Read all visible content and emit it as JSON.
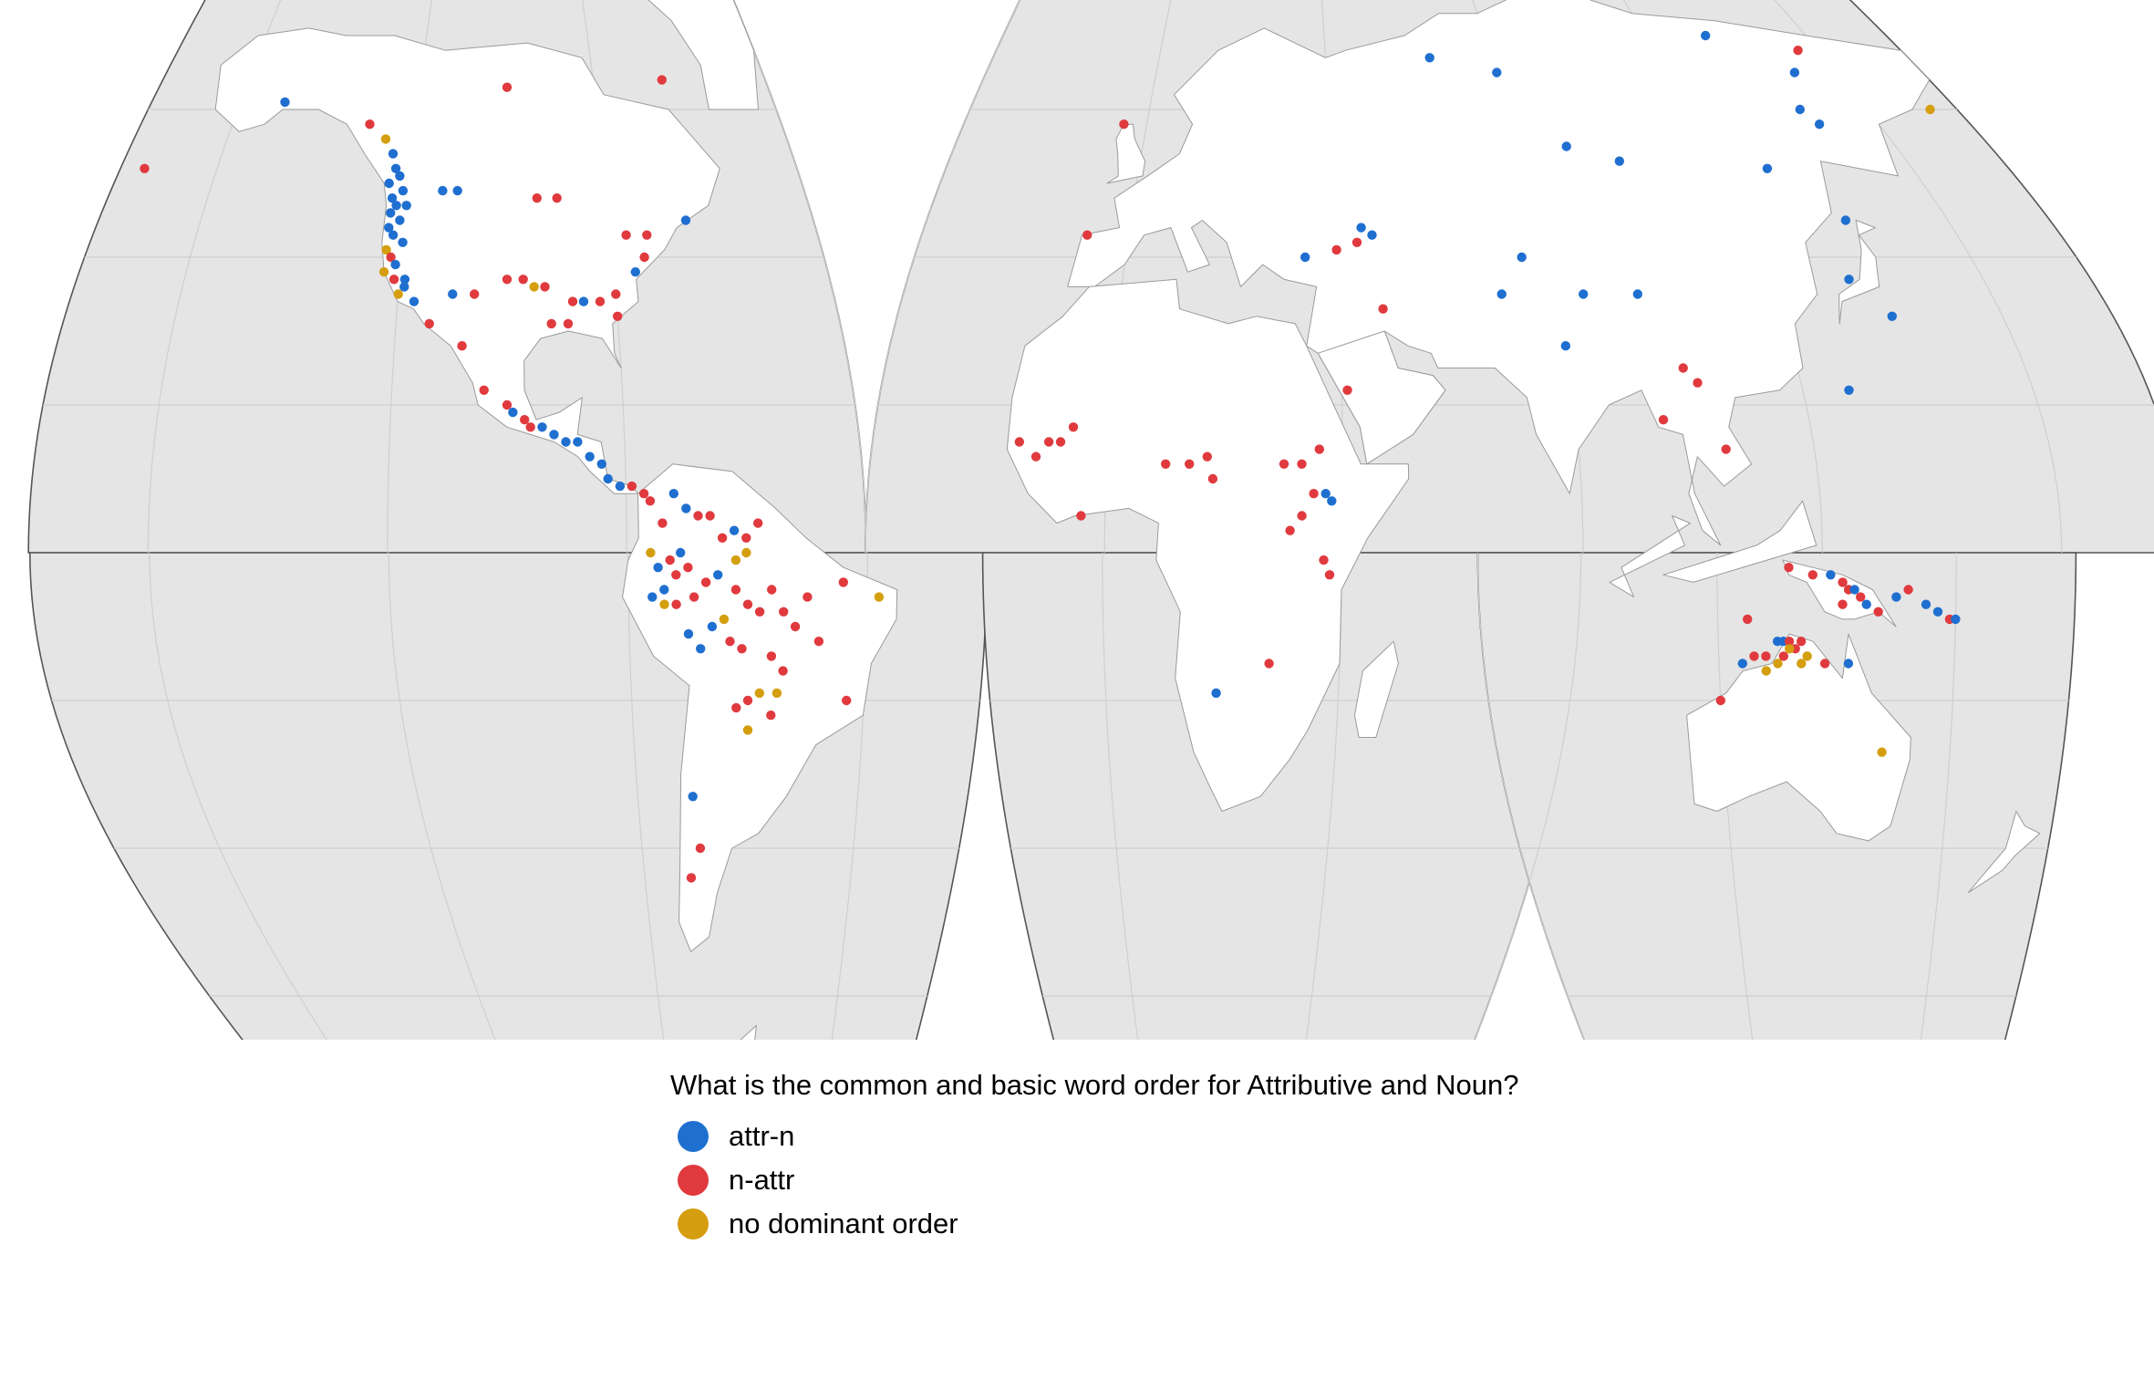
{
  "colors": {
    "ocean": "#e5e5e5",
    "land": "#ffffff",
    "attr_n": "#1f6fd0",
    "n_attr": "#e03a3e",
    "no_dominant": "#d49e0e"
  },
  "legend": {
    "title": "What is the common and basic word order for Attributive and Noun?",
    "items": [
      {
        "label": "attr-n",
        "key": "attr_n"
      },
      {
        "label": "n-attr",
        "key": "n_attr"
      },
      {
        "label": "no dominant order",
        "key": "no_dominant"
      }
    ]
  },
  "points": [
    {
      "lon": -150,
      "lat": 61,
      "v": "attr_n"
    },
    {
      "lon": -175,
      "lat": 52,
      "v": "n_attr"
    },
    {
      "lon": -130,
      "lat": 58,
      "v": "n_attr"
    },
    {
      "lon": -126,
      "lat": 56,
      "v": "no_dominant"
    },
    {
      "lon": -100,
      "lat": 63,
      "v": "n_attr"
    },
    {
      "lon": -124,
      "lat": 54,
      "v": "attr_n"
    },
    {
      "lon": -123,
      "lat": 52,
      "v": "attr_n"
    },
    {
      "lon": -122,
      "lat": 51,
      "v": "attr_n"
    },
    {
      "lon": -124,
      "lat": 50,
      "v": "attr_n"
    },
    {
      "lon": -121,
      "lat": 49,
      "v": "attr_n"
    },
    {
      "lon": -123,
      "lat": 48,
      "v": "attr_n"
    },
    {
      "lon": -122,
      "lat": 47,
      "v": "attr_n"
    },
    {
      "lon": -120,
      "lat": 47,
      "v": "attr_n"
    },
    {
      "lon": -123,
      "lat": 46,
      "v": "attr_n"
    },
    {
      "lon": -121,
      "lat": 45,
      "v": "attr_n"
    },
    {
      "lon": -123,
      "lat": 44,
      "v": "attr_n"
    },
    {
      "lon": -122,
      "lat": 43,
      "v": "attr_n"
    },
    {
      "lon": -120,
      "lat": 42,
      "v": "attr_n"
    },
    {
      "lon": -123,
      "lat": 41,
      "v": "no_dominant"
    },
    {
      "lon": -122,
      "lat": 40,
      "v": "n_attr"
    },
    {
      "lon": -121,
      "lat": 39,
      "v": "attr_n"
    },
    {
      "lon": -123,
      "lat": 38,
      "v": "no_dominant"
    },
    {
      "lon": -121,
      "lat": 37,
      "v": "n_attr"
    },
    {
      "lon": -119,
      "lat": 37,
      "v": "attr_n"
    },
    {
      "lon": -120,
      "lat": 35,
      "v": "no_dominant"
    },
    {
      "lon": -117,
      "lat": 34,
      "v": "attr_n"
    },
    {
      "lon": -119,
      "lat": 36,
      "v": "attr_n"
    },
    {
      "lon": -113,
      "lat": 49,
      "v": "attr_n"
    },
    {
      "lon": -110,
      "lat": 49,
      "v": "attr_n"
    },
    {
      "lon": -94,
      "lat": 48,
      "v": "n_attr"
    },
    {
      "lon": -90,
      "lat": 48,
      "v": "n_attr"
    },
    {
      "lon": -110,
      "lat": 35,
      "v": "attr_n"
    },
    {
      "lon": -106,
      "lat": 35,
      "v": "n_attr"
    },
    {
      "lon": -100,
      "lat": 37,
      "v": "n_attr"
    },
    {
      "lon": -97,
      "lat": 37,
      "v": "n_attr"
    },
    {
      "lon": -95,
      "lat": 36,
      "v": "no_dominant"
    },
    {
      "lon": -93,
      "lat": 36,
      "v": "n_attr"
    },
    {
      "lon": -86,
      "lat": 34,
      "v": "attr_n"
    },
    {
      "lon": -88,
      "lat": 34,
      "v": "n_attr"
    },
    {
      "lon": -89,
      "lat": 31,
      "v": "n_attr"
    },
    {
      "lon": -92,
      "lat": 31,
      "v": "n_attr"
    },
    {
      "lon": -83,
      "lat": 34,
      "v": "n_attr"
    },
    {
      "lon": -80,
      "lat": 35,
      "v": "n_attr"
    },
    {
      "lon": -80,
      "lat": 32,
      "v": "n_attr"
    },
    {
      "lon": -76,
      "lat": 38,
      "v": "attr_n"
    },
    {
      "lon": -74,
      "lat": 40,
      "v": "n_attr"
    },
    {
      "lon": -77,
      "lat": 43,
      "v": "n_attr"
    },
    {
      "lon": -73,
      "lat": 43,
      "v": "n_attr"
    },
    {
      "lon": -65,
      "lat": 45,
      "v": "attr_n"
    },
    {
      "lon": -64,
      "lat": 64,
      "v": "n_attr"
    },
    {
      "lon": -114,
      "lat": 31,
      "v": "n_attr"
    },
    {
      "lon": -108,
      "lat": 28,
      "v": "n_attr"
    },
    {
      "lon": -104,
      "lat": 22,
      "v": "n_attr"
    },
    {
      "lon": -100,
      "lat": 20,
      "v": "n_attr"
    },
    {
      "lon": -99,
      "lat": 19,
      "v": "attr_n"
    },
    {
      "lon": -97,
      "lat": 18,
      "v": "n_attr"
    },
    {
      "lon": -96,
      "lat": 17,
      "v": "n_attr"
    },
    {
      "lon": -94,
      "lat": 17,
      "v": "attr_n"
    },
    {
      "lon": -92,
      "lat": 16,
      "v": "attr_n"
    },
    {
      "lon": -90,
      "lat": 15,
      "v": "attr_n"
    },
    {
      "lon": -88,
      "lat": 15,
      "v": "attr_n"
    },
    {
      "lon": -86,
      "lat": 13,
      "v": "attr_n"
    },
    {
      "lon": -84,
      "lat": 12,
      "v": "attr_n"
    },
    {
      "lon": -83,
      "lat": 10,
      "v": "attr_n"
    },
    {
      "lon": -81,
      "lat": 9,
      "v": "attr_n"
    },
    {
      "lon": -79,
      "lat": 9,
      "v": "n_attr"
    },
    {
      "lon": -77,
      "lat": 8,
      "v": "n_attr"
    },
    {
      "lon": -76,
      "lat": 7,
      "v": "n_attr"
    },
    {
      "lon": -74,
      "lat": 4,
      "v": "n_attr"
    },
    {
      "lon": -72,
      "lat": 8,
      "v": "attr_n"
    },
    {
      "lon": -70,
      "lat": 6,
      "v": "attr_n"
    },
    {
      "lon": -68,
      "lat": 5,
      "v": "n_attr"
    },
    {
      "lon": -66,
      "lat": 5,
      "v": "n_attr"
    },
    {
      "lon": -64,
      "lat": 2,
      "v": "n_attr"
    },
    {
      "lon": -62,
      "lat": 3,
      "v": "attr_n"
    },
    {
      "lon": -60,
      "lat": 2,
      "v": "n_attr"
    },
    {
      "lon": -58,
      "lat": 4,
      "v": "n_attr"
    },
    {
      "lon": -76,
      "lat": 0,
      "v": "no_dominant"
    },
    {
      "lon": -75,
      "lat": -2,
      "v": "attr_n"
    },
    {
      "lon": -73,
      "lat": -1,
      "v": "n_attr"
    },
    {
      "lon": -72,
      "lat": -3,
      "v": "n_attr"
    },
    {
      "lon": -71,
      "lat": 0,
      "v": "attr_n"
    },
    {
      "lon": -70,
      "lat": -2,
      "v": "n_attr"
    },
    {
      "lon": -74,
      "lat": -5,
      "v": "attr_n"
    },
    {
      "lon": -76,
      "lat": -6,
      "v": "attr_n"
    },
    {
      "lon": -72,
      "lat": -7,
      "v": "n_attr"
    },
    {
      "lon": -69,
      "lat": -6,
      "v": "n_attr"
    },
    {
      "lon": -67,
      "lat": -4,
      "v": "n_attr"
    },
    {
      "lon": -65,
      "lat": -3,
      "v": "attr_n"
    },
    {
      "lon": -62,
      "lat": -5,
      "v": "n_attr"
    },
    {
      "lon": -60,
      "lat": -7,
      "v": "n_attr"
    },
    {
      "lon": -58,
      "lat": -8,
      "v": "n_attr"
    },
    {
      "lon": -56,
      "lat": -5,
      "v": "n_attr"
    },
    {
      "lon": -54,
      "lat": -8,
      "v": "n_attr"
    },
    {
      "lon": -52,
      "lat": -10,
      "v": "n_attr"
    },
    {
      "lon": -50,
      "lat": -6,
      "v": "n_attr"
    },
    {
      "lon": -48,
      "lat": -12,
      "v": "n_attr"
    },
    {
      "lon": -64,
      "lat": -9,
      "v": "no_dominant"
    },
    {
      "lon": -66,
      "lat": -10,
      "v": "attr_n"
    },
    {
      "lon": -63,
      "lat": -12,
      "v": "n_attr"
    },
    {
      "lon": -68,
      "lat": -13,
      "v": "attr_n"
    },
    {
      "lon": -70,
      "lat": -11,
      "v": "attr_n"
    },
    {
      "lon": -61,
      "lat": -13,
      "v": "n_attr"
    },
    {
      "lon": -56,
      "lat": -14,
      "v": "n_attr"
    },
    {
      "lon": -54,
      "lat": -16,
      "v": "n_attr"
    },
    {
      "lon": -58,
      "lat": -19,
      "v": "no_dominant"
    },
    {
      "lon": -60,
      "lat": -20,
      "v": "n_attr"
    },
    {
      "lon": -56,
      "lat": -22,
      "v": "n_attr"
    },
    {
      "lon": -60,
      "lat": -24,
      "v": "no_dominant"
    },
    {
      "lon": -62,
      "lat": -21,
      "v": "n_attr"
    },
    {
      "lon": -55,
      "lat": -19,
      "v": "no_dominant"
    },
    {
      "lon": -44,
      "lat": -4,
      "v": "n_attr"
    },
    {
      "lon": -38,
      "lat": -6,
      "v": "no_dominant"
    },
    {
      "lon": -43,
      "lat": -20,
      "v": "n_attr"
    },
    {
      "lon": -60,
      "lat": 0,
      "v": "no_dominant"
    },
    {
      "lon": -62,
      "lat": -1,
      "v": "no_dominant"
    },
    {
      "lon": -74,
      "lat": -7,
      "v": "no_dominant"
    },
    {
      "lon": -70,
      "lat": -33,
      "v": "attr_n"
    },
    {
      "lon": -71,
      "lat": -44,
      "v": "n_attr"
    },
    {
      "lon": -69,
      "lat": -40,
      "v": "n_attr"
    },
    {
      "lon": -5,
      "lat": 58,
      "v": "n_attr"
    },
    {
      "lon": -8,
      "lat": 43,
      "v": "n_attr"
    },
    {
      "lon": 45,
      "lat": 44,
      "v": "attr_n"
    },
    {
      "lon": 44,
      "lat": 42,
      "v": "n_attr"
    },
    {
      "lon": 47,
      "lat": 43,
      "v": "attr_n"
    },
    {
      "lon": 40,
      "lat": 41,
      "v": "n_attr"
    },
    {
      "lon": 34,
      "lat": 40,
      "v": "attr_n"
    },
    {
      "lon": 48,
      "lat": 33,
      "v": "n_attr"
    },
    {
      "lon": 65,
      "lat": 67,
      "v": "attr_n"
    },
    {
      "lon": 80,
      "lat": 65,
      "v": "attr_n"
    },
    {
      "lon": 90,
      "lat": 55,
      "v": "attr_n"
    },
    {
      "lon": 100,
      "lat": 53,
      "v": "attr_n"
    },
    {
      "lon": 75,
      "lat": 40,
      "v": "attr_n"
    },
    {
      "lon": 70,
      "lat": 35,
      "v": "attr_n"
    },
    {
      "lon": 85,
      "lat": 35,
      "v": "attr_n"
    },
    {
      "lon": 95,
      "lat": 35,
      "v": "attr_n"
    },
    {
      "lon": 80,
      "lat": 28,
      "v": "attr_n"
    },
    {
      "lon": 135,
      "lat": 70,
      "v": "attr_n"
    },
    {
      "lon": 155,
      "lat": 68,
      "v": "n_attr"
    },
    {
      "lon": 150,
      "lat": 65,
      "v": "attr_n"
    },
    {
      "lon": 145,
      "lat": 60,
      "v": "attr_n"
    },
    {
      "lon": 147,
      "lat": 58,
      "v": "attr_n"
    },
    {
      "lon": 174,
      "lat": 60,
      "v": "no_dominant"
    },
    {
      "lon": 130,
      "lat": 52,
      "v": "attr_n"
    },
    {
      "lon": 140,
      "lat": 45,
      "v": "attr_n"
    },
    {
      "lon": 135,
      "lat": 37,
      "v": "attr_n"
    },
    {
      "lon": 140,
      "lat": 32,
      "v": "attr_n"
    },
    {
      "lon": 128,
      "lat": 22,
      "v": "attr_n"
    },
    {
      "lon": 100,
      "lat": 25,
      "v": "n_attr"
    },
    {
      "lon": 102,
      "lat": 23,
      "v": "n_attr"
    },
    {
      "lon": 95,
      "lat": 18,
      "v": "n_attr"
    },
    {
      "lon": 105,
      "lat": 14,
      "v": "n_attr"
    },
    {
      "lon": 41,
      "lat": 22,
      "v": "n_attr"
    },
    {
      "lon": -15,
      "lat": 15,
      "v": "n_attr"
    },
    {
      "lon": -12,
      "lat": 13,
      "v": "n_attr"
    },
    {
      "lon": -10,
      "lat": 15,
      "v": "n_attr"
    },
    {
      "lon": -8,
      "lat": 15,
      "v": "n_attr"
    },
    {
      "lon": -6,
      "lat": 17,
      "v": "n_attr"
    },
    {
      "lon": -4,
      "lat": 5,
      "v": "n_attr"
    },
    {
      "lon": 10,
      "lat": 12,
      "v": "n_attr"
    },
    {
      "lon": 14,
      "lat": 12,
      "v": "n_attr"
    },
    {
      "lon": 17,
      "lat": 13,
      "v": "n_attr"
    },
    {
      "lon": 18,
      "lat": 10,
      "v": "n_attr"
    },
    {
      "lon": 30,
      "lat": 12,
      "v": "n_attr"
    },
    {
      "lon": 33,
      "lat": 12,
      "v": "n_attr"
    },
    {
      "lon": 36,
      "lat": 14,
      "v": "n_attr"
    },
    {
      "lon": 35,
      "lat": 8,
      "v": "n_attr"
    },
    {
      "lon": 37,
      "lat": 8,
      "v": "attr_n"
    },
    {
      "lon": 38,
      "lat": 7,
      "v": "attr_n"
    },
    {
      "lon": 33,
      "lat": 5,
      "v": "n_attr"
    },
    {
      "lon": 31,
      "lat": 3,
      "v": "n_attr"
    },
    {
      "lon": 37,
      "lat": -1,
      "v": "n_attr"
    },
    {
      "lon": 38,
      "lat": -3,
      "v": "n_attr"
    },
    {
      "lon": 28,
      "lat": -15,
      "v": "n_attr"
    },
    {
      "lon": 19,
      "lat": -19,
      "v": "attr_n"
    },
    {
      "lon": 132,
      "lat": -2,
      "v": "n_attr"
    },
    {
      "lon": 136,
      "lat": -3,
      "v": "n_attr"
    },
    {
      "lon": 139,
      "lat": -3,
      "v": "attr_n"
    },
    {
      "lon": 141,
      "lat": -4,
      "v": "n_attr"
    },
    {
      "lon": 142,
      "lat": -5,
      "v": "n_attr"
    },
    {
      "lon": 143,
      "lat": -5,
      "v": "attr_n"
    },
    {
      "lon": 144,
      "lat": -6,
      "v": "n_attr"
    },
    {
      "lon": 145,
      "lat": -7,
      "v": "attr_n"
    },
    {
      "lon": 141,
      "lat": -7,
      "v": "n_attr"
    },
    {
      "lon": 147,
      "lat": -8,
      "v": "n_attr"
    },
    {
      "lon": 150,
      "lat": -6,
      "v": "attr_n"
    },
    {
      "lon": 152,
      "lat": -5,
      "v": "n_attr"
    },
    {
      "lon": 155,
      "lat": -7,
      "v": "attr_n"
    },
    {
      "lon": 157,
      "lat": -8,
      "v": "attr_n"
    },
    {
      "lon": 159,
      "lat": -9,
      "v": "n_attr"
    },
    {
      "lon": 160,
      "lat": -9,
      "v": "attr_n"
    },
    {
      "lon": 125,
      "lat": -9,
      "v": "n_attr"
    },
    {
      "lon": 130,
      "lat": -12,
      "v": "attr_n"
    },
    {
      "lon": 131,
      "lat": -12,
      "v": "attr_n"
    },
    {
      "lon": 132,
      "lat": -12,
      "v": "n_attr"
    },
    {
      "lon": 133,
      "lat": -13,
      "v": "n_attr"
    },
    {
      "lon": 134,
      "lat": -12,
      "v": "n_attr"
    },
    {
      "lon": 132,
      "lat": -13,
      "v": "no_dominant"
    },
    {
      "lon": 131,
      "lat": -14,
      "v": "n_attr"
    },
    {
      "lon": 130,
      "lat": -15,
      "v": "no_dominant"
    },
    {
      "lon": 128,
      "lat": -16,
      "v": "no_dominant"
    },
    {
      "lon": 134,
      "lat": -15,
      "v": "no_dominant"
    },
    {
      "lon": 135,
      "lat": -14,
      "v": "no_dominant"
    },
    {
      "lon": 128,
      "lat": -14,
      "v": "n_attr"
    },
    {
      "lon": 126,
      "lat": -14,
      "v": "n_attr"
    },
    {
      "lon": 124,
      "lat": -15,
      "v": "attr_n"
    },
    {
      "lon": 120,
      "lat": -20,
      "v": "n_attr"
    },
    {
      "lon": 138,
      "lat": -15,
      "v": "n_attr"
    },
    {
      "lon": 142,
      "lat": -15,
      "v": "attr_n"
    },
    {
      "lon": 148,
      "lat": -27,
      "v": "no_dominant"
    }
  ]
}
